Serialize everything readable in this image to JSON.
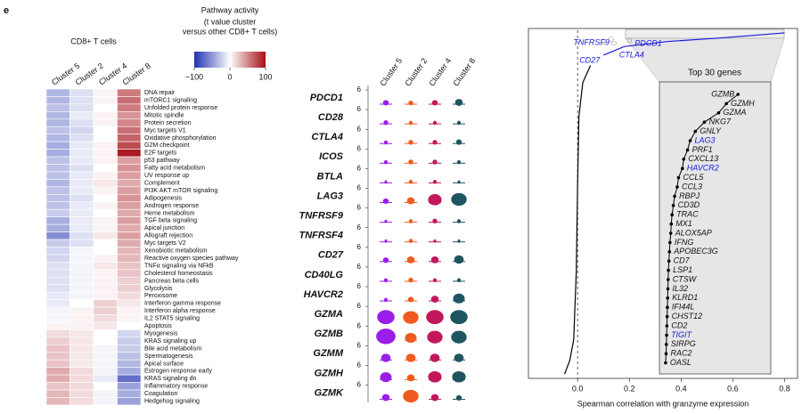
{
  "panel_label": "e",
  "chart_data": [
    {
      "type": "heatmap",
      "title": "Pathway activity",
      "subtitle": [
        "(t value cluster",
        "versus other CD8+ T cells)"
      ],
      "group_label": "CD8+ T cells",
      "columns": [
        "Cluster 5",
        "Cluster 2",
        "Cluster 4",
        "Cluster 8"
      ],
      "rows": [
        "DNA repair",
        "mTORC1 signaling",
        "Unfolded protein response",
        "Mitotic spindle",
        "Protein secretion",
        "Myc targets V1",
        "Oxidative phosphorylation",
        "G2M checkpoint",
        "E2F targets",
        "p53 pathway",
        "Fatty acid metabolism",
        "UV response up",
        "Complement",
        "PI3K AKT mTOR signaling",
        "Adipogenesis",
        "Androgen response",
        "Heme metabolism",
        "TGF beta signaling",
        "Apical junction",
        "Allograft rejection",
        "Myc targets V2",
        "Xenobiotic metabolism",
        "Reactive oxygen species pathway",
        "TNFα signaling via NFkB",
        "Cholesterol homeostasis",
        "Pancreas beta cells",
        "Glycolysis",
        "Peroxisome",
        "Interferon gamma response",
        "Interferon alpha response",
        "IL2 STAT5 signaling",
        "Apoptosis",
        "Myogenesis",
        "KRAS signaling up",
        "Bile acid metabolism",
        "Spermatogenesis",
        "Apical surface",
        "Estrogen response early",
        "KRAS signaling dn",
        "Inflammatory response",
        "Coagulation",
        "Hedgehog signaling"
      ],
      "values": [
        [
          -35,
          -15,
          5,
          55
        ],
        [
          -35,
          -15,
          5,
          60
        ],
        [
          -30,
          -15,
          0,
          55
        ],
        [
          -35,
          -10,
          5,
          45
        ],
        [
          -35,
          -15,
          5,
          50
        ],
        [
          -30,
          -20,
          0,
          60
        ],
        [
          -35,
          -15,
          0,
          65
        ],
        [
          -40,
          -10,
          5,
          75
        ],
        [
          -40,
          -10,
          5,
          95
        ],
        [
          -30,
          -10,
          5,
          40
        ],
        [
          -30,
          -15,
          0,
          45
        ],
        [
          -30,
          -10,
          5,
          40
        ],
        [
          -35,
          -10,
          10,
          35
        ],
        [
          -30,
          -10,
          5,
          40
        ],
        [
          -30,
          -15,
          0,
          45
        ],
        [
          -30,
          -10,
          5,
          40
        ],
        [
          -25,
          -10,
          0,
          35
        ],
        [
          -40,
          -10,
          5,
          40
        ],
        [
          -40,
          -10,
          5,
          35
        ],
        [
          -55,
          -15,
          10,
          40
        ],
        [
          -25,
          -15,
          0,
          35
        ],
        [
          -20,
          -5,
          0,
          30
        ],
        [
          -20,
          -5,
          5,
          30
        ],
        [
          -15,
          -5,
          10,
          25
        ],
        [
          -15,
          -5,
          5,
          25
        ],
        [
          -15,
          -5,
          5,
          20
        ],
        [
          -15,
          -5,
          5,
          20
        ],
        [
          -10,
          -5,
          5,
          15
        ],
        [
          -10,
          0,
          20,
          10
        ],
        [
          -5,
          5,
          20,
          5
        ],
        [
          -5,
          5,
          15,
          5
        ],
        [
          5,
          5,
          10,
          0
        ],
        [
          15,
          10,
          0,
          -20
        ],
        [
          20,
          10,
          0,
          -25
        ],
        [
          25,
          10,
          -5,
          -25
        ],
        [
          25,
          10,
          -5,
          -30
        ],
        [
          25,
          10,
          -5,
          -35
        ],
        [
          35,
          15,
          -5,
          -40
        ],
        [
          35,
          15,
          -10,
          -70
        ],
        [
          25,
          15,
          0,
          -45
        ],
        [
          30,
          15,
          -5,
          -40
        ],
        [
          30,
          15,
          -5,
          -45
        ]
      ],
      "clim": [
        -100,
        100
      ],
      "colorbar_ticks": [
        {
          "value": -100,
          "label": "−100"
        },
        0,
        100
      ],
      "colors": [
        "#2131b0",
        "#ffffff",
        "#a50f15"
      ]
    },
    {
      "type": "violin",
      "genes": [
        "PDCD1",
        "CD28",
        "CTLA4",
        "ICOS",
        "BTLA",
        "LAG3",
        "TNFRSF9",
        "TNFRSF4",
        "CD27",
        "CD40LG",
        "HAVCR2",
        "GZMA",
        "GZMB",
        "GZMM",
        "GZMH",
        "GZMK"
      ],
      "clusters": [
        "Cluster 5",
        "Cluster 2",
        "Cluster 4",
        "Cluster 8"
      ],
      "colors": [
        "#9a1ee8",
        "#f05a1e",
        "#c2185b",
        "#1f5560"
      ],
      "ytick": 6,
      "widths": [
        [
          0.2,
          0.15,
          0.2,
          0.3
        ],
        [
          0.15,
          0.1,
          0.1,
          0.1
        ],
        [
          0.1,
          0.15,
          0.15,
          0.2
        ],
        [
          0.1,
          0.15,
          0.15,
          0.1
        ],
        [
          0.05,
          0.1,
          0.1,
          0.05
        ],
        [
          0.2,
          0.3,
          0.6,
          0.7
        ],
        [
          0.05,
          0.1,
          0.15,
          0.1
        ],
        [
          0.05,
          0.1,
          0.05,
          0.05
        ],
        [
          0.2,
          0.3,
          0.3,
          0.4
        ],
        [
          0.1,
          0.15,
          0.1,
          0.1
        ],
        [
          0.1,
          0.2,
          0.3,
          0.5
        ],
        [
          0.8,
          0.7,
          0.8,
          0.8
        ],
        [
          0.9,
          0.5,
          0.7,
          0.7
        ],
        [
          0.4,
          0.4,
          0.4,
          0.4
        ],
        [
          0.5,
          0.3,
          0.6,
          0.6
        ],
        [
          0.3,
          0.7,
          0.3,
          0.2
        ]
      ]
    },
    {
      "type": "line",
      "xlabel": "Spearman correlation with granzyme expression",
      "xlim": [
        -0.19,
        0.85
      ],
      "xticks": [
        {
          "value": 0,
          "label": "0.0"
        },
        {
          "value": 0.2,
          "label": "0.2"
        },
        {
          "value": 0.4,
          "label": "0.4"
        },
        {
          "value": 0.6,
          "label": "0.6"
        },
        {
          "value": 0.8,
          "label": "0.8"
        }
      ],
      "ylim": [
        0,
        1
      ],
      "series": [
        {
          "color": "#000000",
          "x": [
            -0.05,
            -0.03,
            -0.015,
            -0.005,
            0.0,
            0.005,
            0.02,
            0.05
          ],
          "values": [
            0,
            0.04,
            0.1,
            0.3,
            0.55,
            0.75,
            0.85,
            0.9
          ]
        },
        {
          "color": "#1a1adc",
          "x": [
            0.1,
            0.18,
            0.35,
            0.55,
            0.8
          ],
          "values": [
            0.93,
            0.955,
            0.97,
            0.98,
            0.995
          ]
        }
      ],
      "labeled_genes": {
        "names": [
          "TNFRSF9",
          "PDCD1",
          "CD27",
          "CTLA4"
        ],
        "x": [
          0.13,
          0.2,
          0.1,
          0.14
        ]
      },
      "inset": {
        "title": "Top 30 genes",
        "genes": [
          "GZMB",
          "GZMH",
          "GZMA",
          "NKG7",
          "GNLY",
          "LAG3",
          "PRF1",
          "CXCL13",
          "HAVCR2",
          "CCL5",
          "CCL3",
          "RBPJ",
          "CD3D",
          "TRAC",
          "MX1",
          "ALOX5AP",
          "IFNG",
          "APOBEC3G",
          "CD7",
          "LSP1",
          "CTSW",
          "IL32",
          "KLRD1",
          "IFI44L",
          "CHST12",
          "CD2",
          "TIGIT",
          "SIRPG",
          "RAC2",
          "OASL"
        ],
        "values": [
          0.62,
          0.575,
          0.545,
          0.49,
          0.455,
          0.435,
          0.425,
          0.41,
          0.405,
          0.39,
          0.385,
          0.375,
          0.37,
          0.365,
          0.362,
          0.36,
          0.357,
          0.355,
          0.353,
          0.351,
          0.35,
          0.349,
          0.348,
          0.347,
          0.346,
          0.345,
          0.344,
          0.343,
          0.342,
          0.34
        ],
        "highlighted": [
          5,
          8,
          26
        ],
        "highlight_color": "#1a1adc"
      }
    }
  ]
}
